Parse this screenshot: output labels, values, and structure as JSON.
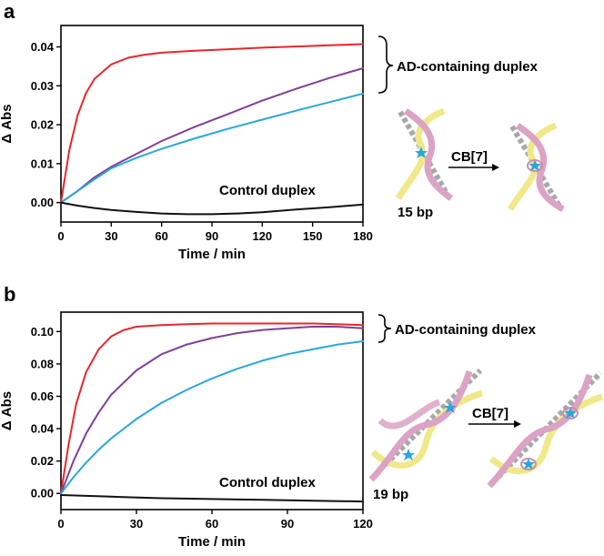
{
  "chart_data": [
    {
      "panel": "a",
      "type": "line",
      "xlabel": "Time / min",
      "ylabel": "Δ Abs",
      "xlim": [
        0,
        180
      ],
      "ylim": [
        -0.005,
        0.0455
      ],
      "x_ticks": [
        0,
        30,
        60,
        90,
        120,
        150,
        180
      ],
      "y_ticks": [
        0.0,
        0.01,
        0.02,
        0.03,
        0.04
      ],
      "y_tick_labels": [
        "0.00",
        "0.01",
        "0.02",
        "0.03",
        "0.04"
      ],
      "grid": false,
      "series": [
        {
          "color": "#e8262b",
          "x": [
            0,
            5,
            10,
            15,
            20,
            30,
            40,
            50,
            60,
            80,
            100,
            120,
            140,
            160,
            180
          ],
          "y": [
            0.0,
            0.0135,
            0.0225,
            0.0282,
            0.0318,
            0.0355,
            0.0372,
            0.038,
            0.0385,
            0.039,
            0.0394,
            0.0398,
            0.0401,
            0.0404,
            0.0407
          ]
        },
        {
          "color": "#7f3f98",
          "x": [
            0,
            10,
            20,
            30,
            45,
            60,
            80,
            100,
            120,
            140,
            160,
            180
          ],
          "y": [
            0.0,
            0.003,
            0.0065,
            0.0092,
            0.0125,
            0.0158,
            0.0195,
            0.0228,
            0.0262,
            0.0292,
            0.032,
            0.0345
          ]
        },
        {
          "color": "#2aa6df",
          "x": [
            0,
            10,
            20,
            30,
            45,
            60,
            80,
            100,
            120,
            140,
            160,
            180
          ],
          "y": [
            0.0,
            0.003,
            0.006,
            0.0088,
            0.0115,
            0.0138,
            0.0165,
            0.019,
            0.0213,
            0.0236,
            0.0258,
            0.028
          ]
        },
        {
          "color": "#111111",
          "x": [
            0,
            10,
            20,
            30,
            45,
            60,
            75,
            90,
            105,
            120,
            140,
            160,
            180
          ],
          "y": [
            0.0,
            -0.0008,
            -0.0014,
            -0.0019,
            -0.0024,
            -0.0028,
            -0.003,
            -0.003,
            -0.0028,
            -0.0025,
            -0.0018,
            -0.0012,
            -0.0005
          ]
        }
      ],
      "annotations": {
        "bracket_label": "AD-containing duplex",
        "control_label": "Control duplex",
        "reaction_label": "CB[7]",
        "size_label": "15 bp"
      }
    },
    {
      "panel": "b",
      "type": "line",
      "xlabel": "Time / min",
      "ylabel": "Δ Abs",
      "xlim": [
        0,
        120
      ],
      "ylim": [
        -0.01,
        0.112
      ],
      "x_ticks": [
        0,
        30,
        60,
        90,
        120
      ],
      "y_ticks": [
        0.0,
        0.02,
        0.04,
        0.06,
        0.08,
        0.1
      ],
      "y_tick_labels": [
        "0.00",
        "0.02",
        "0.04",
        "0.06",
        "0.08",
        "0.10"
      ],
      "grid": false,
      "series": [
        {
          "color": "#e8262b",
          "x": [
            0,
            3,
            6,
            10,
            15,
            20,
            25,
            30,
            40,
            50,
            60,
            80,
            100,
            120
          ],
          "y": [
            0.0,
            0.03,
            0.055,
            0.075,
            0.089,
            0.097,
            0.101,
            0.103,
            0.104,
            0.1045,
            0.105,
            0.105,
            0.105,
            0.104
          ]
        },
        {
          "color": "#7f3f98",
          "x": [
            0,
            5,
            10,
            15,
            20,
            30,
            40,
            50,
            60,
            70,
            80,
            90,
            100,
            110,
            120
          ],
          "y": [
            0.0,
            0.02,
            0.037,
            0.05,
            0.061,
            0.076,
            0.086,
            0.092,
            0.096,
            0.099,
            0.101,
            0.102,
            0.103,
            0.103,
            0.102
          ]
        },
        {
          "color": "#2aa6df",
          "x": [
            0,
            5,
            10,
            15,
            20,
            30,
            40,
            50,
            60,
            70,
            80,
            90,
            100,
            110,
            120
          ],
          "y": [
            0.0,
            0.01,
            0.019,
            0.027,
            0.034,
            0.046,
            0.056,
            0.064,
            0.071,
            0.077,
            0.082,
            0.086,
            0.089,
            0.092,
            0.094
          ]
        },
        {
          "color": "#111111",
          "x": [
            0,
            20,
            40,
            60,
            80,
            100,
            120
          ],
          "y": [
            -0.001,
            -0.002,
            -0.003,
            -0.0035,
            -0.004,
            -0.0045,
            -0.005
          ]
        }
      ],
      "annotations": {
        "bracket_label": "AD-containing duplex",
        "control_label": "Control duplex",
        "reaction_label": "CB[7]",
        "size_label": "19 bp"
      }
    }
  ],
  "panels": {
    "a": {
      "letter": "a"
    },
    "b": {
      "letter": "b"
    }
  },
  "colors": {
    "red": "#e8262b",
    "purple": "#7f3f98",
    "blue": "#2aa6df",
    "black": "#111111",
    "dna_pink": "#dba3c4",
    "dna_yellow": "#f0e889",
    "dna_bar": "#a8a8a8"
  },
  "icons": [
    "dna-duplex-icon",
    "dna-duplex-cb7-icon",
    "star-marker-icon",
    "reaction-arrow-icon"
  ]
}
